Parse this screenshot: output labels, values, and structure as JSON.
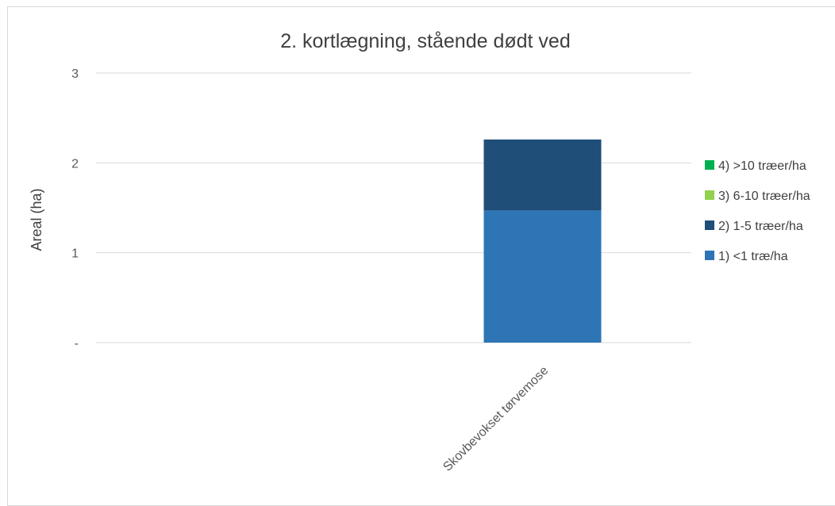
{
  "chart_data": {
    "type": "bar",
    "stacked": true,
    "title": "2. kortlægning, stående dødt ved",
    "xlabel": "",
    "ylabel": "Areal (ha)",
    "ylim": [
      0,
      3
    ],
    "yticks": [
      0,
      1,
      2,
      3
    ],
    "ytick_labels": [
      "-",
      "1",
      "2",
      "3"
    ],
    "grid": true,
    "legend_position": "right",
    "categories": [
      "",
      "Skovbevokset tørvemose"
    ],
    "series": [
      {
        "name": "1) <1 træ/ha",
        "color": "#2e75b6",
        "values": [
          0,
          1.47
        ]
      },
      {
        "name": "2) 1-5 træer/ha",
        "color": "#1f4e79",
        "values": [
          0,
          0.79
        ]
      },
      {
        "name": "3) 6-10 træer/ha",
        "color": "#92d050",
        "values": [
          0,
          0
        ]
      },
      {
        "name": "4) >10 træer/ha",
        "color": "#00b050",
        "values": [
          0,
          0
        ]
      }
    ]
  }
}
